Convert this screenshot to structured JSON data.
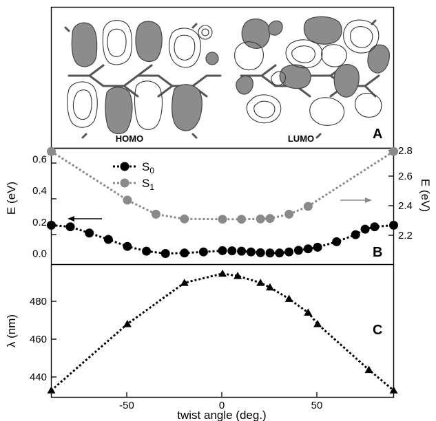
{
  "chart_data": [
    {
      "panel": "A",
      "type": "image",
      "panel_label": "A",
      "captions": [
        "HOMO",
        "LUMO"
      ]
    },
    {
      "panel": "B",
      "type": "scatter",
      "panel_label": "B",
      "xlim": [
        -90,
        90
      ],
      "ylabel": "E (eV)",
      "ylim": [
        -0.07,
        0.67
      ],
      "yticks": [
        "0.0",
        "0.2",
        "0.4",
        "0.6"
      ],
      "ylabel_right": "E (eV)",
      "ylim_right": [
        2.13,
        2.87
      ],
      "yticks_right": [
        "2.2",
        "2.4",
        "2.6",
        "2.8"
      ],
      "legend": [
        "S",
        "S"
      ],
      "legend_subscripts": [
        "0",
        "1"
      ],
      "series": [
        {
          "legend_index": 0,
          "axis": "left",
          "color": "#000000",
          "marker": "circle",
          "x": [
            -90,
            -80,
            -70,
            -60,
            -50,
            -40,
            -30,
            -20,
            -10,
            0,
            5,
            10,
            15,
            20,
            25,
            30,
            35,
            40,
            45,
            50,
            60,
            70,
            75,
            80,
            90
          ],
          "y": [
            0.18,
            0.17,
            0.13,
            0.09,
            0.045,
            0.015,
            0.0,
            0.003,
            0.01,
            0.018,
            0.017,
            0.015,
            0.01,
            0.005,
            0.003,
            0.003,
            0.01,
            0.02,
            0.03,
            0.04,
            0.075,
            0.12,
            0.155,
            0.17,
            0.18
          ]
        },
        {
          "legend_index": 1,
          "axis": "right",
          "color": "#8a8a8a",
          "marker": "circle",
          "x": [
            -90,
            -50,
            -35,
            -20,
            0,
            10,
            20,
            25,
            35,
            45,
            90
          ],
          "y": [
            2.85,
            2.54,
            2.45,
            2.42,
            2.418,
            2.418,
            2.42,
            2.423,
            2.45,
            2.5,
            2.85
          ]
        }
      ]
    },
    {
      "panel": "C",
      "type": "scatter",
      "panel_label": "C",
      "xlabel": "twist angle (deg.)",
      "xlim": [
        -90,
        90
      ],
      "xticks": [
        "-50",
        "0",
        "50"
      ],
      "ylabel": "λ (nm)",
      "ylim": [
        437,
        495
      ],
      "yticks": [
        "440",
        "460",
        "480"
      ],
      "series": [
        {
          "color": "#000000",
          "marker": "triangle",
          "x": [
            -90,
            -50,
            -20,
            0,
            8,
            20,
            25,
            35,
            45,
            50,
            77,
            90
          ],
          "y": [
            440,
            469,
            487,
            491,
            490,
            487,
            485,
            480,
            474,
            469,
            449,
            440
          ]
        }
      ]
    }
  ]
}
